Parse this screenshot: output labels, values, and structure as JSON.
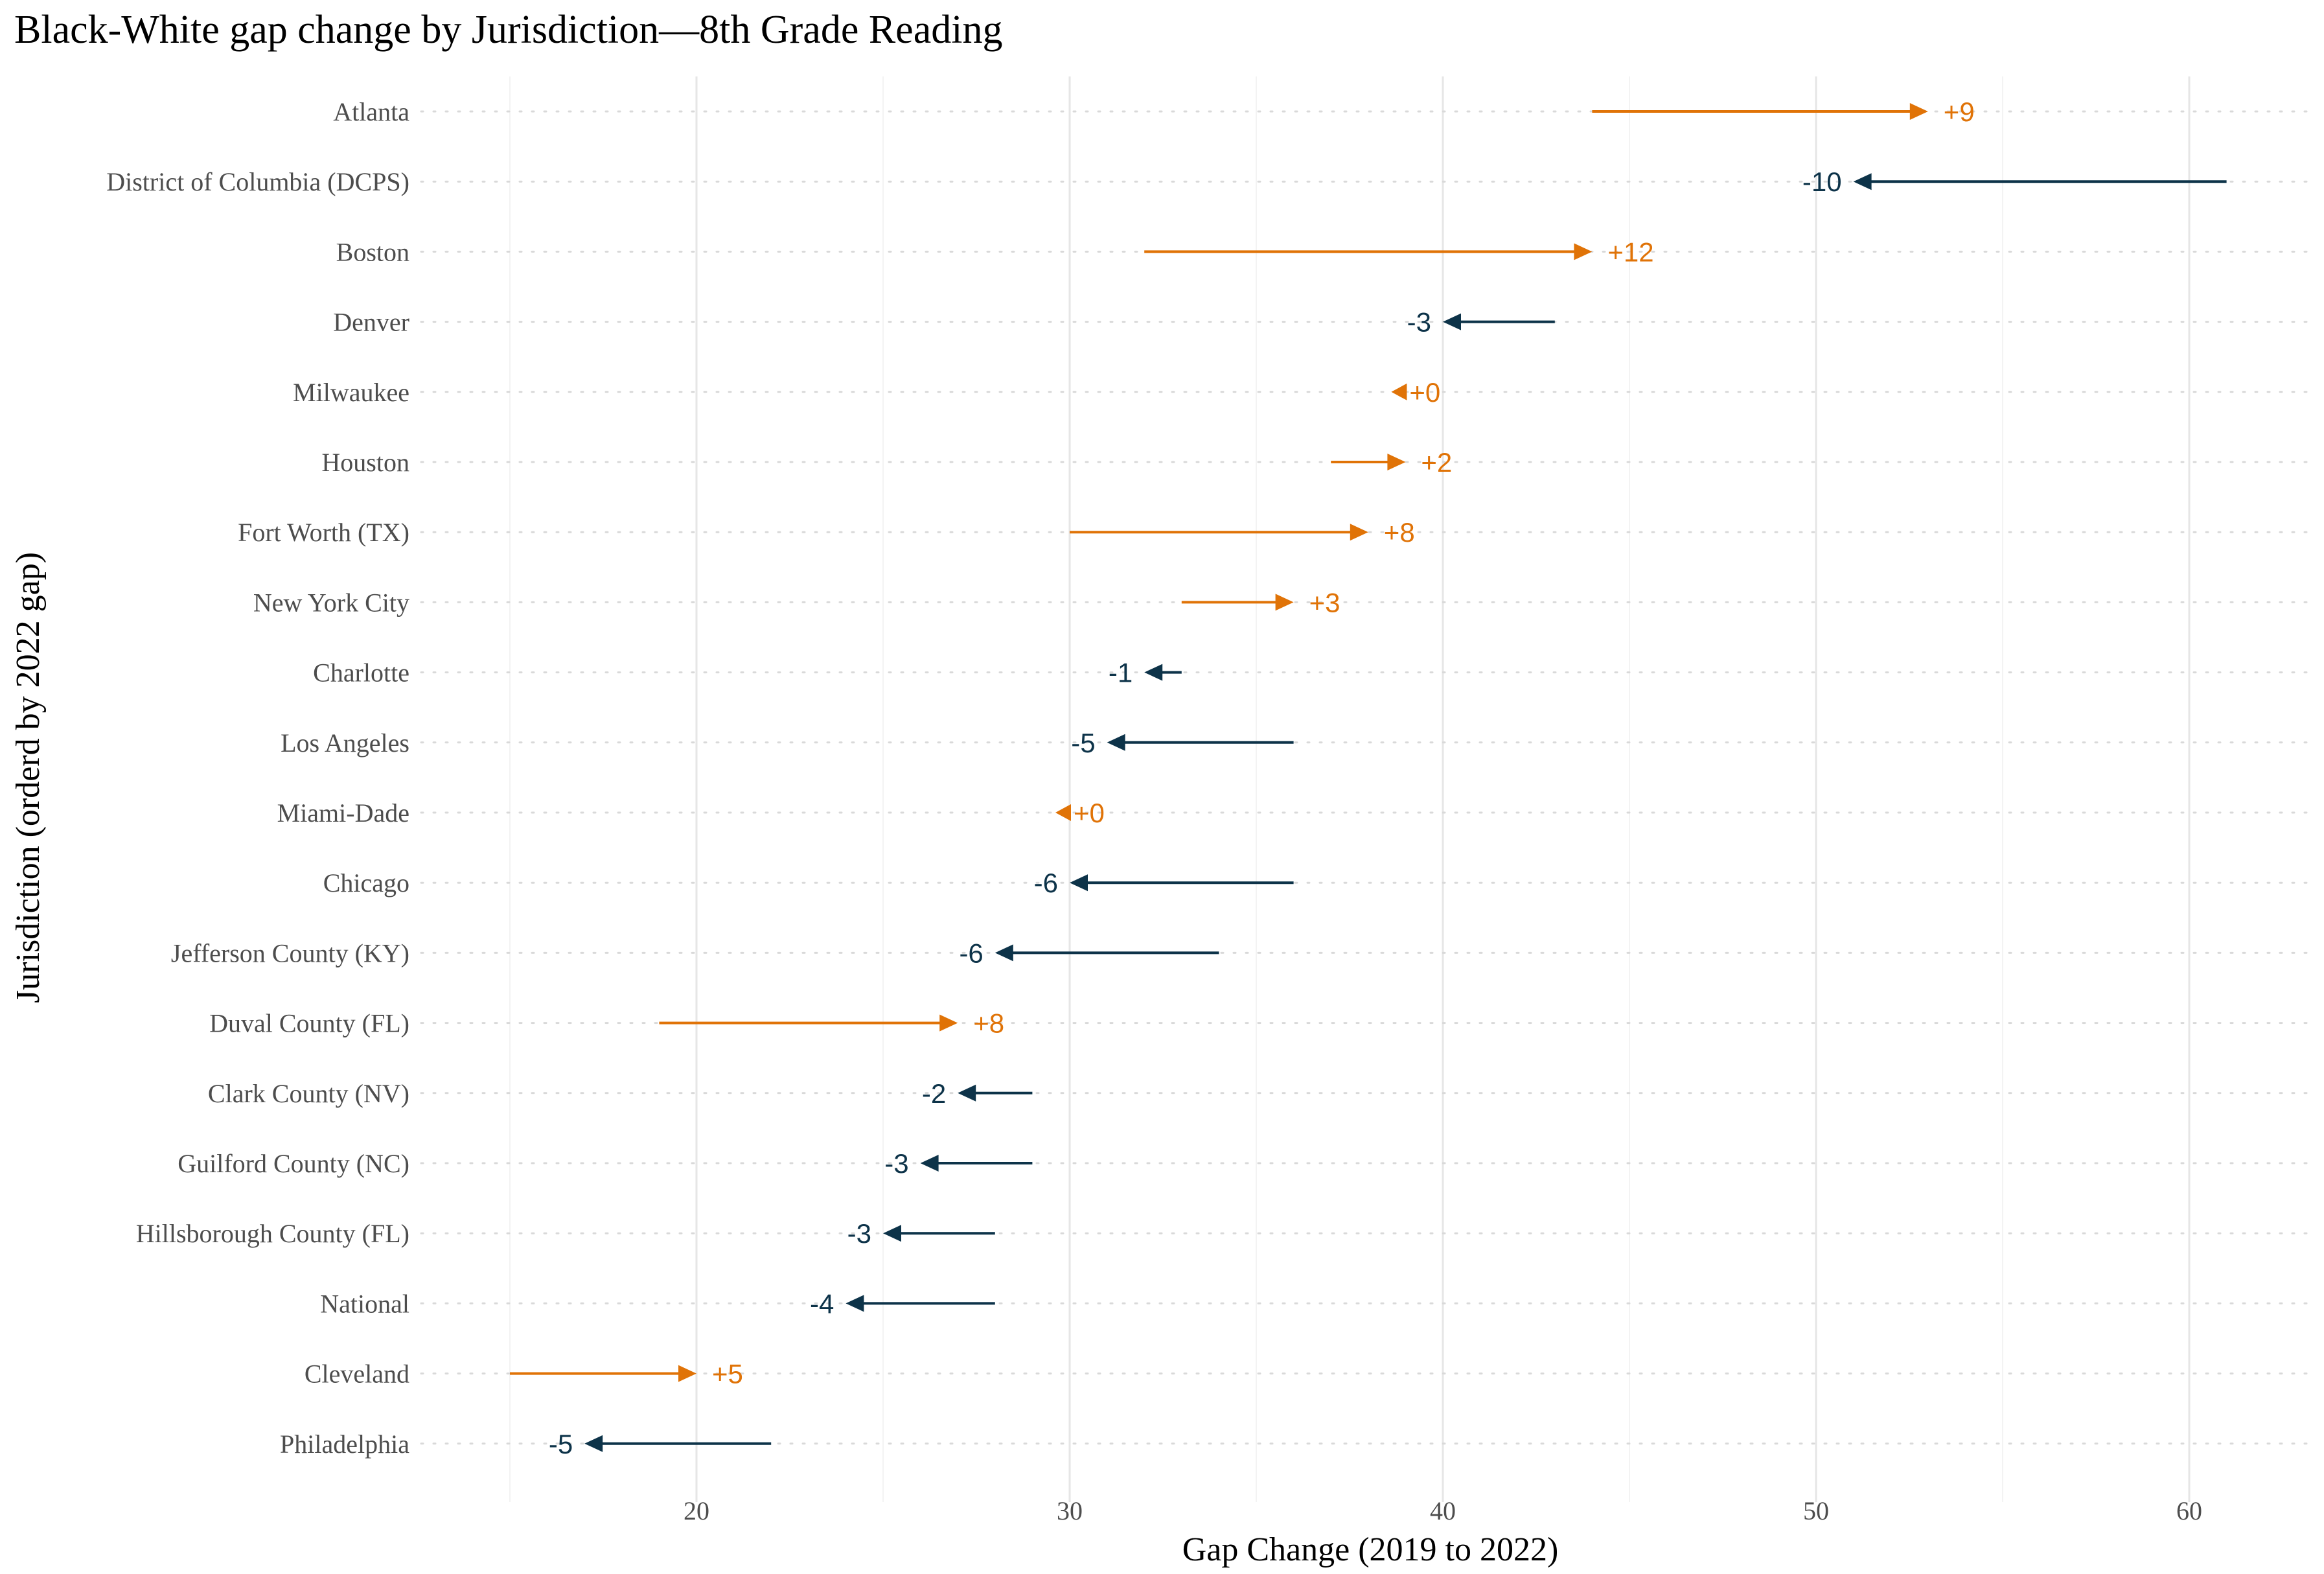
{
  "chart_data": {
    "type": "arrow-dot",
    "title": "Black-White gap change by Jurisdiction—8th Grade Reading",
    "xlabel": "Gap Change (2019 to 2022)",
    "ylabel": "Jurisdiction (orderd by 2022 gap)",
    "xlim": [
      12.5,
      63
    ],
    "xticks": [
      20,
      30,
      40,
      50,
      60
    ],
    "tick_labels": [
      "20",
      "30",
      "40",
      "50",
      "60"
    ],
    "grid": {
      "vertical_major": true,
      "horizontal_dotted": true
    },
    "colors": {
      "increase": "#E07307",
      "decrease": "#0D3349",
      "grid": "#E6E6E6",
      "text": "#4D4D4D"
    },
    "rows": [
      {
        "name": "Atlanta",
        "gap_2019": 44,
        "gap_2022": 53,
        "label": "+9"
      },
      {
        "name": "District of Columbia (DCPS)",
        "gap_2019": 61,
        "gap_2022": 51,
        "label": "-10"
      },
      {
        "name": "Boston",
        "gap_2019": 32,
        "gap_2022": 44,
        "label": "+12"
      },
      {
        "name": "Denver",
        "gap_2019": 43,
        "gap_2022": 40,
        "label": "-3"
      },
      {
        "name": "Milwaukee",
        "gap_2019": 39,
        "gap_2022": 39,
        "label": "+0"
      },
      {
        "name": "Houston",
        "gap_2019": 37,
        "gap_2022": 39,
        "label": "+2"
      },
      {
        "name": "Fort Worth (TX)",
        "gap_2019": 30,
        "gap_2022": 38,
        "label": "+8"
      },
      {
        "name": "New York City",
        "gap_2019": 33,
        "gap_2022": 36,
        "label": "+3"
      },
      {
        "name": "Charlotte",
        "gap_2019": 33,
        "gap_2022": 32,
        "label": "-1"
      },
      {
        "name": "Los Angeles",
        "gap_2019": 36,
        "gap_2022": 31,
        "label": "-5"
      },
      {
        "name": "Miami-Dade",
        "gap_2019": 30,
        "gap_2022": 30,
        "label": "+0"
      },
      {
        "name": "Chicago",
        "gap_2019": 36,
        "gap_2022": 30,
        "label": "-6"
      },
      {
        "name": "Jefferson County (KY)",
        "gap_2019": 34,
        "gap_2022": 28,
        "label": "-6"
      },
      {
        "name": "Duval County (FL)",
        "gap_2019": 19,
        "gap_2022": 27,
        "label": "+8"
      },
      {
        "name": "Clark County (NV)",
        "gap_2019": 29,
        "gap_2022": 27,
        "label": "-2"
      },
      {
        "name": "Guilford County (NC)",
        "gap_2019": 29,
        "gap_2022": 26,
        "label": "-3"
      },
      {
        "name": "Hillsborough County (FL)",
        "gap_2019": 28,
        "gap_2022": 25,
        "label": "-3"
      },
      {
        "name": "National",
        "gap_2019": 28,
        "gap_2022": 24,
        "label": "-4"
      },
      {
        "name": "Cleveland",
        "gap_2019": 15,
        "gap_2022": 20,
        "label": "+5"
      },
      {
        "name": "Philadelphia",
        "gap_2019": 22,
        "gap_2022": 17,
        "label": "-5"
      }
    ]
  }
}
